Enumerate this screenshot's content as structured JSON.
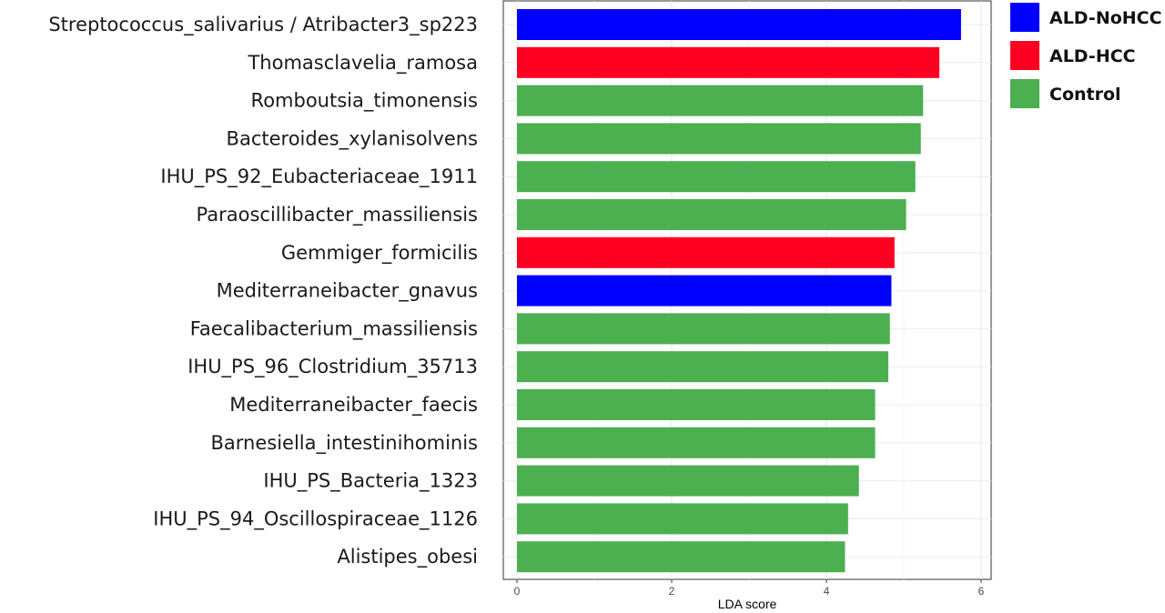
{
  "chart_data": {
    "type": "bar",
    "orientation": "horizontal",
    "xlabel": "LDA score",
    "ylabel": "",
    "title": "",
    "xlim": [
      0,
      6
    ],
    "x_ticks": [
      "0",
      "2",
      "4",
      "6"
    ],
    "grid": true,
    "legend_position": "top-right",
    "legend": [
      {
        "name": "ALD-NoHCC",
        "color": "#0000ff"
      },
      {
        "name": "ALD-HCC",
        "color": "#ff0022"
      },
      {
        "name": "Control",
        "color": "#4caf50"
      }
    ],
    "categories": [
      "Streptococcus_salivarius / Atribacter3_sp223",
      "Thomasclavelia_ramosa",
      "Romboutsia_timonensis",
      "Bacteroides_xylanisolvens",
      "IHU_PS_92_Eubacteriaceae_1911",
      "Paraoscillibacter_massiliensis",
      "Gemmiger_formicilis",
      "Mediterraneibacter_gnavus",
      "Faecalibacterium_massiliensis",
      "IHU_PS_96_Clostridium_35713",
      "Mediterraneibacter_faecis",
      "Barnesiella_intestinihominis",
      "IHU_PS_Bacteria_1323",
      "IHU_PS_94_Oscillospiraceae_1126",
      "Alistipes_obesi"
    ],
    "values": [
      5.74,
      5.46,
      5.25,
      5.22,
      5.15,
      5.03,
      4.88,
      4.84,
      4.82,
      4.8,
      4.63,
      4.63,
      4.42,
      4.28,
      4.24
    ],
    "groups": [
      "ALD-NoHCC",
      "ALD-HCC",
      "Control",
      "Control",
      "Control",
      "Control",
      "ALD-HCC",
      "ALD-NoHCC",
      "Control",
      "Control",
      "Control",
      "Control",
      "Control",
      "Control",
      "Control"
    ]
  }
}
